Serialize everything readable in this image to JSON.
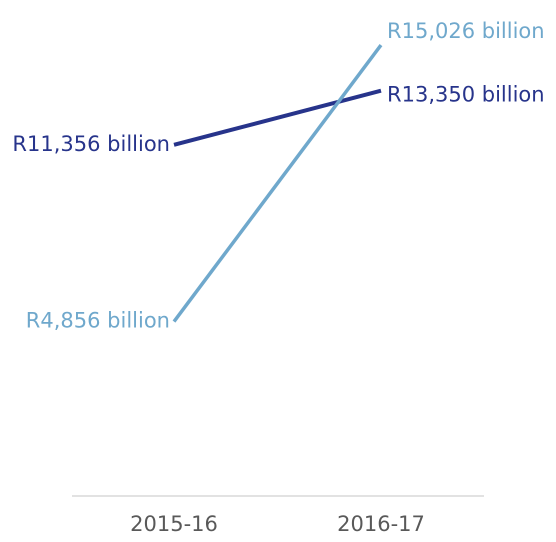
{
  "chart_data": {
    "type": "line",
    "categories": [
      "2015-16",
      "2016-17"
    ],
    "series": [
      {
        "values": [
          11356,
          13350
        ],
        "labels": [
          "R11,356 billion",
          "R13,350 billion"
        ],
        "color": "#27348b"
      },
      {
        "values": [
          4856,
          15026
        ],
        "labels": [
          "R4,856 billion",
          "R15,026 billion"
        ],
        "color": "#6fa8cc"
      }
    ],
    "title": "",
    "xlabel": "",
    "ylabel": "",
    "ylim": [
      0,
      16000
    ],
    "grid": false,
    "legend": "none"
  }
}
